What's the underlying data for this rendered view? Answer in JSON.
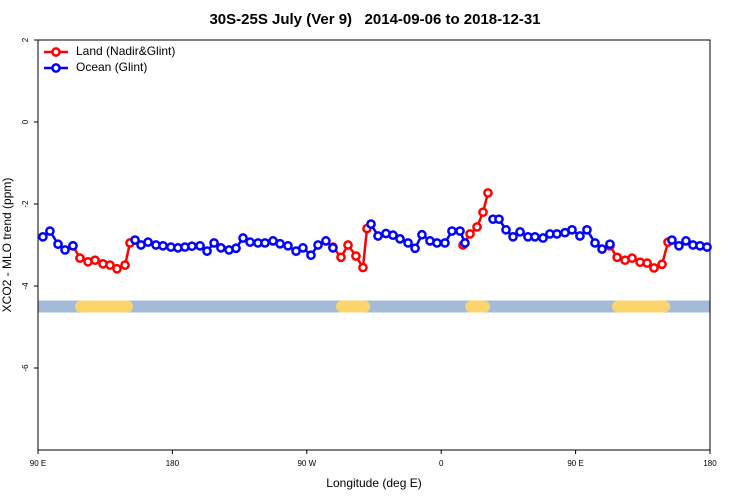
{
  "chart_data": {
    "type": "line",
    "title": "30S-25S July (Ver 9)   2014-09-06 to 2018-12-31",
    "x_label": "Longitude (deg E)",
    "y_label": "XCO2 - MLO trend (ppm)",
    "xlim": [
      90,
      540
    ],
    "ylim": [
      -8,
      2
    ],
    "xticks": [
      {
        "value": 90,
        "label": "90 E"
      },
      180,
      {
        "value": 270,
        "label": "90 W"
      },
      {
        "value": 360,
        "label": "0"
      },
      {
        "value": 450,
        "label": "90 E"
      },
      {
        "value": 540,
        "label": "180"
      }
    ],
    "yticks": [
      2,
      0,
      -2,
      -4,
      -6
    ],
    "legend": "top-left",
    "mask_y": -4.5,
    "mask_color": "#a3bbd9",
    "land_color": "#fbd46b",
    "land_spans": [
      [
        114.8,
        153.6
      ],
      [
        289.6,
        312.4
      ],
      [
        376,
        392.7
      ],
      [
        474.4,
        513.3
      ]
    ],
    "series": [
      {
        "name": "Land (Nadir&Glint)",
        "color": "#ff0000",
        "x": [
          113.4,
          118.1,
          123.5,
          128.2,
          133.5,
          138.2,
          142.9,
          148.3,
          151.6,
          null,
          287.5,
          292.9,
          297.6,
          302.9,
          307.6,
          310.3,
          null,
          374.6,
          379.3,
          384,
          388,
          391.3,
          null,
          473,
          477.8,
          483.1,
          487.8,
          493.2,
          497.9,
          502.5,
          507.9,
          511.9
        ],
        "values": [
          -3.02,
          -3.32,
          -3.41,
          -3.37,
          -3.46,
          -3.49,
          -3.58,
          -3.49,
          -2.95,
          null,
          -3.05,
          -3.3,
          -3.0,
          -3.27,
          -3.55,
          -2.6,
          null,
          -3.0,
          -2.73,
          -2.56,
          -2.2,
          -1.73,
          null,
          -3.02,
          -3.3,
          -3.37,
          -3.32,
          -3.42,
          -3.44,
          -3.56,
          -3.47,
          -2.93
        ]
      },
      {
        "name": "Ocean (Glint)",
        "color": "#0000ff",
        "x": [
          93.3,
          98,
          103.4,
          108.1,
          113.4,
          null,
          155,
          159,
          163.7,
          169,
          173.7,
          179,
          183.7,
          188.4,
          193.1,
          198.5,
          203.2,
          207.9,
          212.5,
          217.9,
          222.6,
          227.3,
          232,
          237.3,
          242,
          247.4,
          252.1,
          257.4,
          262.8,
          267.4,
          272.8,
          277.5,
          282.8,
          287.5,
          null,
          313,
          317.7,
          323,
          327.7,
          332.4,
          337.8,
          342.5,
          347.1,
          352.5,
          357.2,
          362.5,
          367.2,
          372.6,
          375.9,
          null,
          394.7,
          398.7,
          403.4,
          408.1,
          412.8,
          418.1,
          422.8,
          428.2,
          432.8,
          437.5,
          442.9,
          447.6,
          452.9,
          457.6,
          463,
          467.7,
          473,
          null,
          514.5,
          519.2,
          523.9,
          528.6,
          533.3,
          538
        ],
        "values": [
          -2.8,
          -2.66,
          -2.98,
          -3.12,
          -3.02,
          null,
          -2.88,
          -3.0,
          -2.93,
          -3.0,
          -3.02,
          -3.05,
          -3.07,
          -3.05,
          -3.03,
          -3.02,
          -3.15,
          -2.95,
          -3.07,
          -3.12,
          -3.08,
          -2.83,
          -2.93,
          -2.95,
          -2.95,
          -2.9,
          -2.97,
          -3.02,
          -3.15,
          -3.07,
          -3.25,
          -3.0,
          -2.9,
          -3.07,
          null,
          -2.49,
          -2.78,
          -2.72,
          -2.76,
          -2.85,
          -2.95,
          -3.08,
          -2.75,
          -2.9,
          -2.95,
          -2.95,
          -2.66,
          -2.66,
          -2.95,
          null,
          -2.37,
          -2.37,
          -2.63,
          -2.8,
          -2.68,
          -2.8,
          -2.8,
          -2.83,
          -2.73,
          -2.73,
          -2.7,
          -2.63,
          -2.78,
          -2.63,
          -2.95,
          -3.1,
          -2.98,
          null,
          -2.88,
          -3.02,
          -2.9,
          -3.0,
          -3.02,
          -3.05
        ]
      }
    ]
  }
}
